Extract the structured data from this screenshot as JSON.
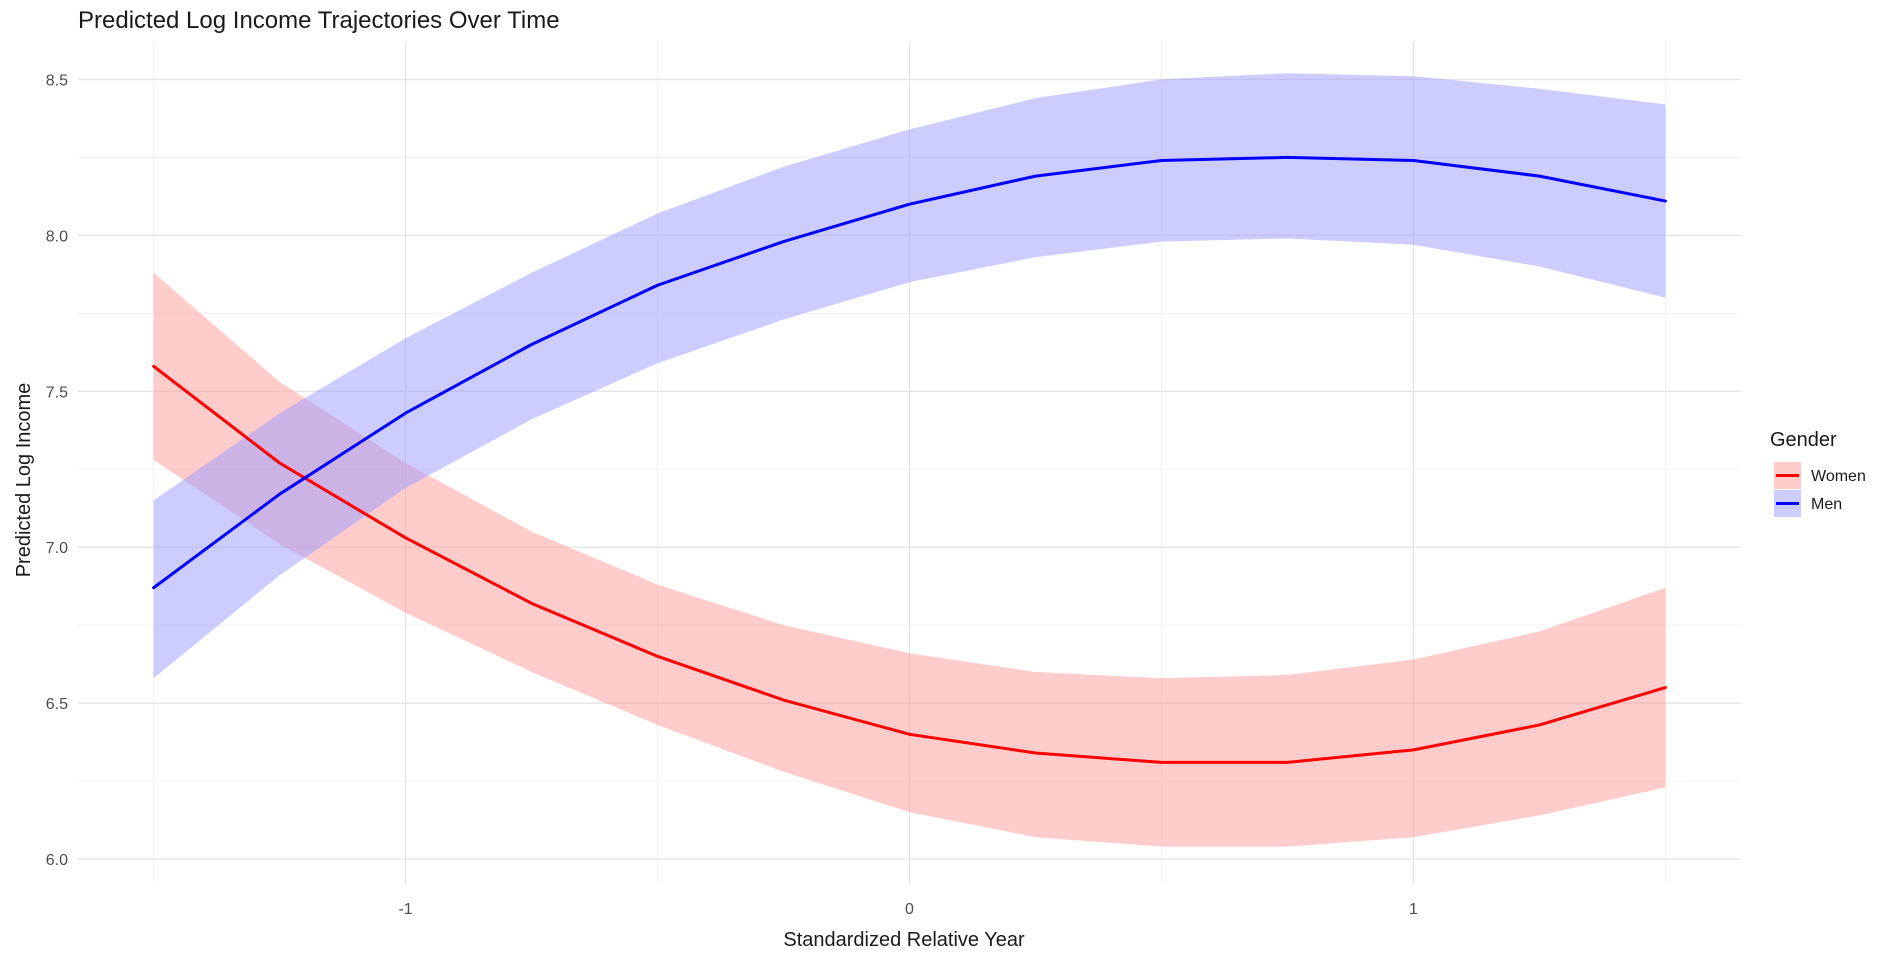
{
  "chart_data": {
    "type": "line",
    "title": "Predicted Log Income Trajectories Over Time",
    "xlabel": "Standardized Relative Year",
    "ylabel": "Predicted Log Income",
    "xlim": [
      -1.65,
      1.65
    ],
    "ylim": [
      5.92,
      8.62
    ],
    "x_ticks": [
      -1,
      0,
      1
    ],
    "x_tick_labels": [
      "-1",
      "0",
      "1"
    ],
    "y_ticks": [
      6.0,
      6.5,
      7.0,
      7.5,
      8.0,
      8.5
    ],
    "y_tick_labels": [
      "6.0",
      "6.5",
      "7.0",
      "7.5",
      "8.0",
      "8.5"
    ],
    "grid": true,
    "legend": {
      "title": "Gender",
      "placement": "right"
    },
    "series": [
      {
        "name": "Women",
        "line_color": "#ff0000",
        "band_color": "#ff9999",
        "x": [
          -1.5,
          -1.25,
          -1.0,
          -0.75,
          -0.5,
          -0.25,
          0.0,
          0.25,
          0.5,
          0.75,
          1.0,
          1.25,
          1.5
        ],
        "y": [
          7.58,
          7.27,
          7.03,
          6.82,
          6.65,
          6.51,
          6.4,
          6.34,
          6.31,
          6.31,
          6.35,
          6.43,
          6.55
        ],
        "lower": [
          7.28,
          7.01,
          6.79,
          6.6,
          6.43,
          6.28,
          6.15,
          6.07,
          6.04,
          6.04,
          6.07,
          6.14,
          6.23
        ],
        "upper": [
          7.88,
          7.53,
          7.27,
          7.05,
          6.88,
          6.75,
          6.66,
          6.6,
          6.58,
          6.59,
          6.64,
          6.73,
          6.87
        ]
      },
      {
        "name": "Men",
        "line_color": "#0000ff",
        "band_color": "#9999ff",
        "x": [
          -1.5,
          -1.25,
          -1.0,
          -0.75,
          -0.5,
          -0.25,
          0.0,
          0.25,
          0.5,
          0.75,
          1.0,
          1.25,
          1.5
        ],
        "y": [
          6.87,
          7.17,
          7.43,
          7.65,
          7.84,
          7.98,
          8.1,
          8.19,
          8.24,
          8.25,
          8.24,
          8.19,
          8.11
        ],
        "lower": [
          6.58,
          6.91,
          7.19,
          7.41,
          7.59,
          7.73,
          7.85,
          7.93,
          7.98,
          7.99,
          7.97,
          7.9,
          7.8
        ],
        "upper": [
          7.15,
          7.43,
          7.67,
          7.88,
          8.07,
          8.22,
          8.34,
          8.44,
          8.5,
          8.52,
          8.51,
          8.47,
          8.42
        ]
      }
    ]
  }
}
